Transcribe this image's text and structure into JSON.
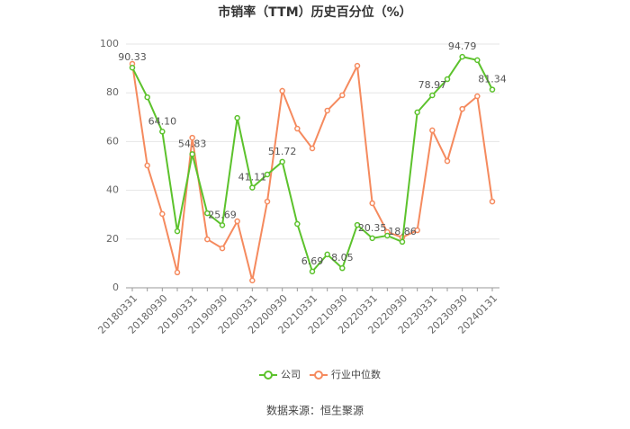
{
  "chart_data": {
    "type": "line",
    "title": "市销率（TTM）历史百分位（%）",
    "categories": [
      "20180331",
      null,
      "20180930",
      null,
      "20190331",
      null,
      "20190930",
      null,
      "20200331",
      null,
      "20200930",
      null,
      "20210331",
      null,
      "20210930",
      null,
      "20220331",
      null,
      "20220930",
      null,
      "20230331",
      null,
      "20230930",
      null,
      "20240131"
    ],
    "series": [
      {
        "name": "公司",
        "color": "#5cc22c",
        "values": [
          90.33,
          78.2,
          64.1,
          23.2,
          54.83,
          30.6,
          25.69,
          69.7,
          41.11,
          46.5,
          51.72,
          26.2,
          6.69,
          13.7,
          8.05,
          25.8,
          20.35,
          21.4,
          18.86,
          72.0,
          78.97,
          85.6,
          94.79,
          93.4,
          81.34
        ],
        "value_labels": [
          "90.33",
          null,
          "64.10",
          null,
          "54.83",
          null,
          "25.69",
          null,
          "41.11",
          null,
          "51.72",
          null,
          "6.69",
          null,
          "8.05",
          null,
          "20.35",
          null,
          "18.86",
          null,
          "78.97",
          null,
          "94.79",
          null,
          "81.34"
        ]
      },
      {
        "name": "行业中位数",
        "color": "#f58a5e",
        "values": [
          91.9,
          50.2,
          30.3,
          6.3,
          61.6,
          19.9,
          16.2,
          27.3,
          3.0,
          35.4,
          80.8,
          65.3,
          57.2,
          72.7,
          79.0,
          91.1,
          34.7,
          22.9,
          20.7,
          23.6,
          64.6,
          52.0,
          73.4,
          78.6,
          35.4
        ]
      }
    ],
    "ylim": [
      0,
      100
    ],
    "yticks": [
      0,
      20,
      40,
      60,
      80,
      100
    ],
    "grid": true,
    "legend": "bottom",
    "source": "数据来源：恒生聚源"
  }
}
